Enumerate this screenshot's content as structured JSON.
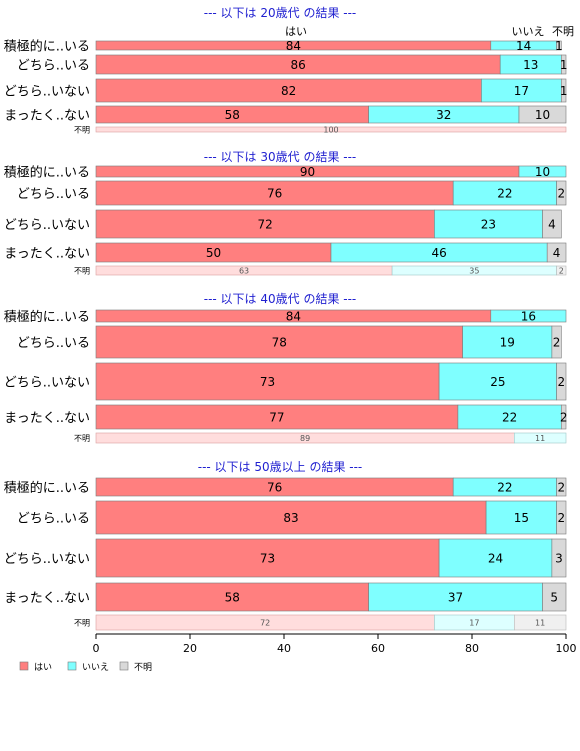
{
  "chart_data": {
    "type": "bar",
    "orientation": "horizontal",
    "stacked": true,
    "percent": true,
    "xlim": [
      0,
      100
    ],
    "xticks": [
      "0",
      "20",
      "40",
      "60",
      "80",
      "100"
    ],
    "top_labels": [
      "はい",
      "いいえ",
      "不明"
    ],
    "legend": {
      "position": "bottom-left",
      "items": [
        {
          "name": "はい",
          "color": "#ff7f7f"
        },
        {
          "name": "いいえ",
          "color": "#7fffff"
        },
        {
          "name": "不明",
          "color": "#d9d9d9"
        }
      ]
    },
    "colors": {
      "yes": "#ff7f7f",
      "no": "#7fffff",
      "unknown": "#d9d9d9",
      "yes_light": "#ffdddd",
      "no_light": "#ddffff",
      "unknown_light": "#f0f0f0",
      "title": "#1f1fd0"
    },
    "groups": [
      {
        "title": "--- 以下は 20歳代 の結果 ---",
        "rows": [
          {
            "label": "積極的に..いる",
            "values": [
              84,
              14,
              1
            ]
          },
          {
            "label": "どちら..いる",
            "values": [
              86,
              13,
              1
            ]
          },
          {
            "label": "どちら..いない",
            "values": [
              82,
              17,
              1
            ]
          },
          {
            "label": "まったく..ない",
            "values": [
              58,
              32,
              10
            ]
          }
        ],
        "unknown_row": {
          "label": "不明",
          "values": [
            100,
            0,
            0
          ]
        }
      },
      {
        "title": "--- 以下は 30歳代 の結果 ---",
        "rows": [
          {
            "label": "積極的に..いる",
            "values": [
              90,
              10,
              0
            ]
          },
          {
            "label": "どちら..いる",
            "values": [
              76,
              22,
              2
            ]
          },
          {
            "label": "どちら..いない",
            "values": [
              72,
              23,
              4
            ]
          },
          {
            "label": "まったく..ない",
            "values": [
              50,
              46,
              4
            ]
          }
        ],
        "unknown_row": {
          "label": "不明",
          "values": [
            63,
            35,
            2
          ]
        }
      },
      {
        "title": "--- 以下は 40歳代 の結果 ---",
        "rows": [
          {
            "label": "積極的に..いる",
            "values": [
              84,
              16,
              0
            ]
          },
          {
            "label": "どちら..いる",
            "values": [
              78,
              19,
              2
            ]
          },
          {
            "label": "どちら..いない",
            "values": [
              73,
              25,
              2
            ]
          },
          {
            "label": "まったく..ない",
            "values": [
              77,
              22,
              2
            ]
          }
        ],
        "unknown_row": {
          "label": "不明",
          "values": [
            89,
            11,
            0
          ]
        }
      },
      {
        "title": "--- 以下は 50歳以上 の結果 ---",
        "rows": [
          {
            "label": "積極的に..いる",
            "values": [
              76,
              22,
              2
            ]
          },
          {
            "label": "どちら..いる",
            "values": [
              83,
              15,
              2
            ]
          },
          {
            "label": "どちら..いない",
            "values": [
              73,
              24,
              3
            ]
          },
          {
            "label": "まったく..ない",
            "values": [
              58,
              37,
              5
            ]
          }
        ],
        "unknown_row": {
          "label": "不明",
          "values": [
            72,
            17,
            11
          ]
        }
      }
    ]
  }
}
